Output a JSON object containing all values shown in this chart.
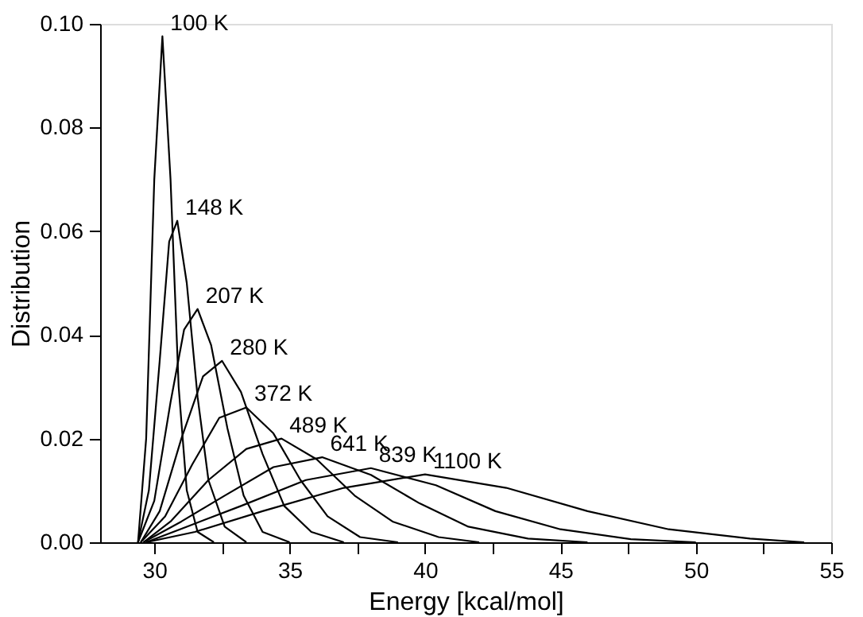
{
  "chart_data": {
    "type": "line",
    "xlabel": "Energy [kcal/mol]",
    "ylabel": "Distribution",
    "xlim": [
      28,
      55
    ],
    "ylim": [
      0,
      0.1
    ],
    "xticks": [
      30,
      {
        "value": 32.5,
        "label": null
      },
      35,
      {
        "value": 37.5,
        "label": null
      },
      40,
      {
        "value": 42.5,
        "label": null
      },
      45,
      {
        "value": 47.5,
        "label": null
      },
      50,
      {
        "value": 52.5,
        "label": null
      },
      55
    ],
    "yticks": [
      {
        "value": 0,
        "label": "0.00"
      },
      {
        "value": 0.02,
        "label": "0.02"
      },
      {
        "value": 0.04,
        "label": "0.04"
      },
      {
        "value": 0.06,
        "label": "0.06"
      },
      {
        "value": 0.08,
        "label": "0.08"
      },
      {
        "value": 0.1,
        "label": "0.10"
      }
    ],
    "grid": false,
    "marker": "none",
    "line_style": "solid",
    "series": [
      {
        "color": "#000000",
        "x": [
          29.4,
          29.7,
          30.0,
          30.3,
          30.6,
          30.9,
          31.2,
          31.6,
          32.2
        ],
        "values": [
          0,
          0.02,
          0.07,
          0.0976,
          0.07,
          0.03,
          0.01,
          0.002,
          0
        ]
      },
      {
        "color": "#000000",
        "x": [
          29.4,
          29.8,
          30.2,
          30.55,
          30.85,
          31.2,
          31.6,
          32.0,
          32.6,
          33.4
        ],
        "values": [
          0,
          0.01,
          0.035,
          0.058,
          0.062,
          0.05,
          0.028,
          0.012,
          0.003,
          0
        ]
      },
      {
        "color": "#000000",
        "x": [
          29.4,
          30,
          30.6,
          31.1,
          31.6,
          32.1,
          32.7,
          33.3,
          34.0,
          35
        ],
        "values": [
          0,
          0.008,
          0.027,
          0.041,
          0.045,
          0.038,
          0.022,
          0.009,
          0.002,
          0
        ]
      },
      {
        "color": "#000000",
        "x": [
          29.5,
          30.2,
          31,
          31.8,
          32.5,
          33.2,
          34,
          34.8,
          35.8,
          37
        ],
        "values": [
          0,
          0.006,
          0.02,
          0.032,
          0.035,
          0.029,
          0.017,
          0.007,
          0.002,
          0
        ]
      },
      {
        "color": "#000000",
        "x": [
          29.5,
          30.4,
          31.4,
          32.4,
          33.4,
          34.4,
          35.4,
          36.4,
          37.6,
          39
        ],
        "values": [
          0,
          0.005,
          0.015,
          0.024,
          0.026,
          0.021,
          0.012,
          0.005,
          0.001,
          0
        ]
      },
      {
        "color": "#000000",
        "x": [
          29.6,
          30.6,
          32,
          33.4,
          34.7,
          36,
          37.4,
          38.8,
          40.5,
          42
        ],
        "values": [
          0,
          0.004,
          0.012,
          0.018,
          0.02,
          0.016,
          0.009,
          0.004,
          0.001,
          0
        ]
      },
      {
        "color": "#000000",
        "x": [
          29.6,
          31,
          32.6,
          34.4,
          36.2,
          38,
          39.8,
          41.6,
          43.8,
          46
        ],
        "values": [
          0,
          0.004,
          0.009,
          0.0145,
          0.0164,
          0.013,
          0.0075,
          0.003,
          0.0007,
          0
        ]
      },
      {
        "color": "#000000",
        "x": [
          29.7,
          31.2,
          33.2,
          35.6,
          38,
          40.4,
          42.6,
          45,
          47.6,
          50
        ],
        "values": [
          0,
          0.003,
          0.007,
          0.012,
          0.0143,
          0.011,
          0.006,
          0.0025,
          0.0006,
          0
        ]
      },
      {
        "color": "#000000",
        "x": [
          29.7,
          31.5,
          34,
          37,
          40,
          43,
          46,
          49,
          52,
          54
        ],
        "values": [
          0,
          0.002,
          0.006,
          0.0105,
          0.0131,
          0.0105,
          0.006,
          0.0025,
          0.0007,
          0
        ]
      }
    ],
    "annotations": [
      "100 K",
      "148 K",
      "207 K",
      "280 K",
      "372 K",
      "489 K",
      "641 K",
      "839 K",
      "1100 K"
    ]
  }
}
